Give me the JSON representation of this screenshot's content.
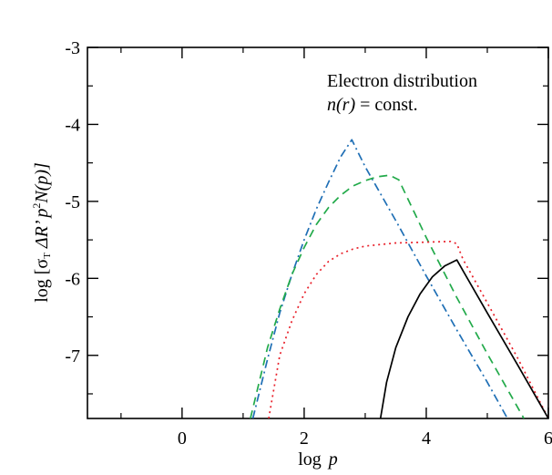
{
  "chart_data": {
    "type": "line",
    "xlabel": {
      "base": "log",
      "var": "p"
    },
    "ylabel": {
      "prefix": "log [",
      "sigma": "σ",
      "sigma_sub": "T",
      "delta_r": " ΔR’ ",
      "p": "p",
      "p_sup": "2",
      "rest": "N(p)]"
    },
    "xlim": [
      -1.55,
      6.0
    ],
    "ylim": [
      -7.82,
      -3.0
    ],
    "x_ticks": [
      0,
      2,
      4,
      6
    ],
    "x_tick_labels": [
      "0",
      "2",
      "4",
      "6"
    ],
    "y_ticks": [
      -3,
      -4,
      -5,
      -6,
      -7
    ],
    "y_tick_labels": [
      "-3",
      "-4",
      "-5",
      "-6",
      "-7"
    ],
    "grid": false,
    "annotation": {
      "line1": "Electron distribution",
      "line2_var": "n(r)",
      "line2_rest": " = const."
    },
    "series": [
      {
        "color": "#1f6fb5",
        "dash": "9,4,2,4",
        "points": [
          [
            1.16,
            -7.82
          ],
          [
            1.4,
            -7.05
          ],
          [
            1.6,
            -6.45
          ],
          [
            1.8,
            -5.95
          ],
          [
            2.0,
            -5.5
          ],
          [
            2.2,
            -5.1
          ],
          [
            2.4,
            -4.75
          ],
          [
            2.6,
            -4.42
          ],
          [
            2.78,
            -4.2
          ],
          [
            3.0,
            -4.55
          ],
          [
            3.5,
            -5.25
          ],
          [
            4.0,
            -5.97
          ],
          [
            4.5,
            -6.67
          ],
          [
            5.0,
            -7.35
          ],
          [
            5.33,
            -7.82
          ]
        ]
      },
      {
        "color": "#22aa4a",
        "dash": "9,6",
        "points": [
          [
            1.12,
            -7.82
          ],
          [
            1.4,
            -6.9
          ],
          [
            1.6,
            -6.4
          ],
          [
            1.8,
            -5.95
          ],
          [
            2.0,
            -5.6
          ],
          [
            2.2,
            -5.3
          ],
          [
            2.4,
            -5.08
          ],
          [
            2.6,
            -4.92
          ],
          [
            2.8,
            -4.8
          ],
          [
            3.0,
            -4.73
          ],
          [
            3.2,
            -4.68
          ],
          [
            3.4,
            -4.66
          ],
          [
            3.55,
            -4.72
          ],
          [
            4.0,
            -5.47
          ],
          [
            4.5,
            -6.25
          ],
          [
            5.0,
            -6.98
          ],
          [
            5.6,
            -7.82
          ]
        ]
      },
      {
        "color": "#e8202a",
        "dash": "2,4",
        "points": [
          [
            1.42,
            -7.82
          ],
          [
            1.6,
            -7.0
          ],
          [
            1.8,
            -6.55
          ],
          [
            2.0,
            -6.2
          ],
          [
            2.2,
            -5.95
          ],
          [
            2.4,
            -5.78
          ],
          [
            2.6,
            -5.68
          ],
          [
            2.8,
            -5.62
          ],
          [
            3.0,
            -5.58
          ],
          [
            3.5,
            -5.54
          ],
          [
            4.0,
            -5.53
          ],
          [
            4.4,
            -5.52
          ],
          [
            4.5,
            -5.55
          ],
          [
            4.6,
            -5.75
          ],
          [
            5.0,
            -6.32
          ],
          [
            5.5,
            -7.04
          ],
          [
            6.0,
            -7.82
          ]
        ]
      },
      {
        "color": "#000000",
        "dash": "",
        "points": [
          [
            3.25,
            -7.82
          ],
          [
            3.35,
            -7.35
          ],
          [
            3.5,
            -6.9
          ],
          [
            3.7,
            -6.5
          ],
          [
            3.9,
            -6.2
          ],
          [
            4.1,
            -5.98
          ],
          [
            4.3,
            -5.84
          ],
          [
            4.5,
            -5.76
          ],
          [
            5.0,
            -6.45
          ],
          [
            5.5,
            -7.13
          ],
          [
            6.0,
            -7.82
          ]
        ]
      }
    ]
  }
}
